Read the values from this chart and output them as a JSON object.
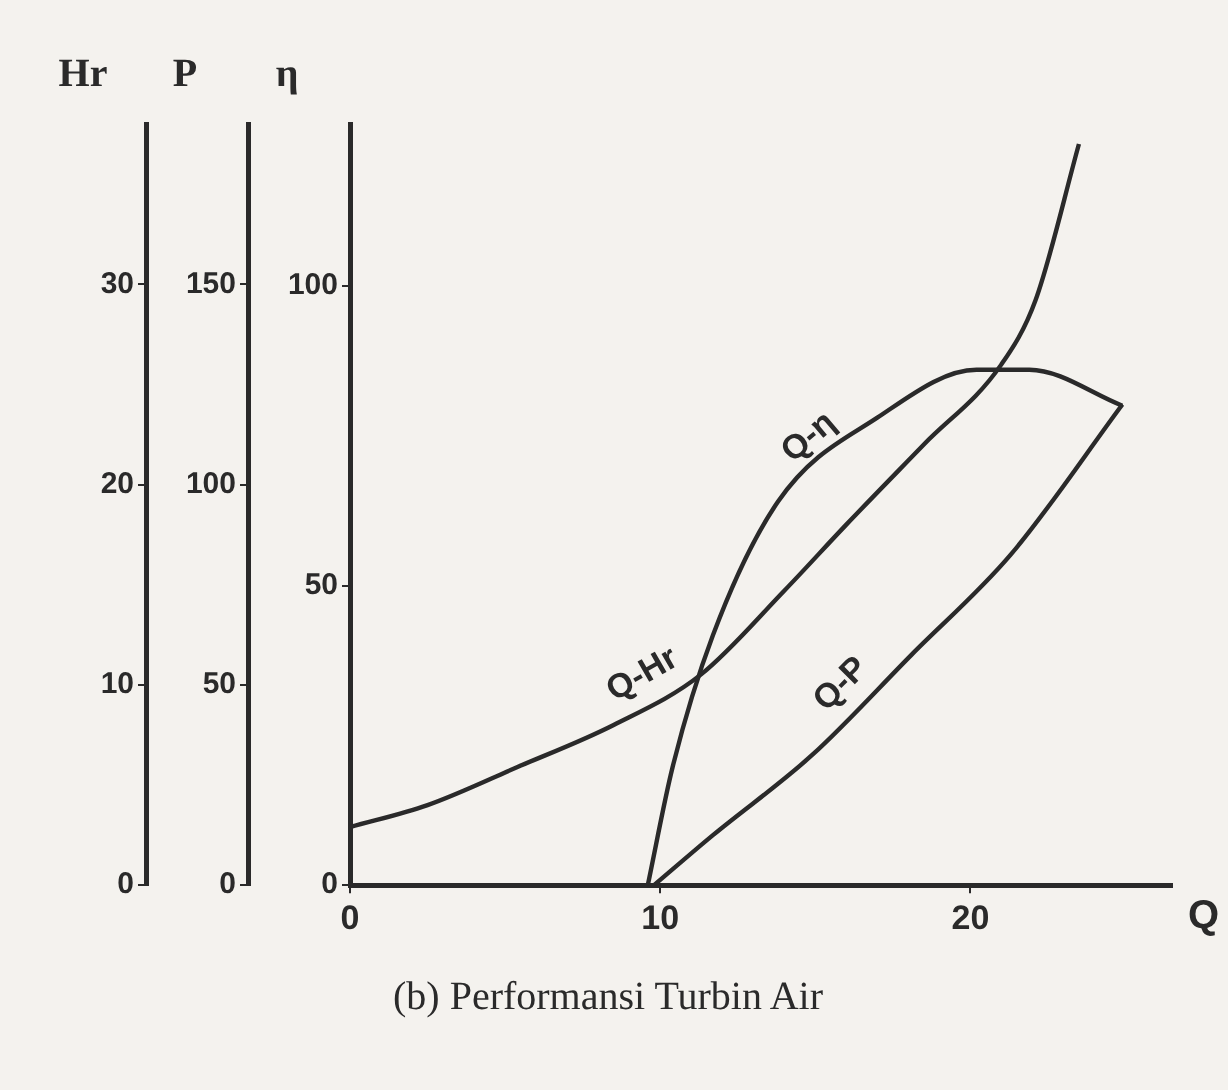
{
  "chart_data": {
    "type": "line",
    "title": "(b) Performansi Turbin Air",
    "xlabel": "Q",
    "ylabel": "η",
    "y2label": "P",
    "y3label": "Hr",
    "xlim": [
      0,
      26.5
    ],
    "xticks": [
      0,
      10,
      20
    ],
    "ylim": [
      0,
      127
    ],
    "yticks": [
      0,
      50,
      100
    ],
    "y2lim": [
      0,
      190
    ],
    "y2ticks": [
      0,
      50,
      100,
      150
    ],
    "y3lim": [
      0,
      38
    ],
    "y3ticks": [
      0,
      10,
      20,
      30
    ],
    "grid": false,
    "legend": false,
    "series": [
      {
        "name": "Q-Hr",
        "color": "#2a2a2a",
        "axis": "y3",
        "x": [
          0,
          2.5,
          5.4,
          8.5,
          11.3,
          14,
          16,
          18.5,
          21,
          22.1,
          23.5
        ],
        "values": [
          2.9,
          4,
          5.9,
          8,
          10.5,
          14.7,
          18,
          22,
          26,
          29.2,
          37
        ]
      },
      {
        "name": "Q-η",
        "color": "#2a2a2a",
        "x": [
          9.6,
          10.4,
          11.7,
          13.8,
          17,
          20.2,
          21.9,
          24.9
        ],
        "values": [
          0,
          19.7,
          41.7,
          64,
          78,
          86,
          86,
          80
        ]
      },
      {
        "name": "Q-P",
        "color": "#2a2a2a",
        "axis": "y2",
        "x": [
          9.8,
          11.7,
          14.9,
          18.1,
          21.3,
          24.9
        ],
        "values": [
          0,
          12.5,
          32.5,
          57.5,
          82.5,
          120
        ]
      }
    ]
  }
}
